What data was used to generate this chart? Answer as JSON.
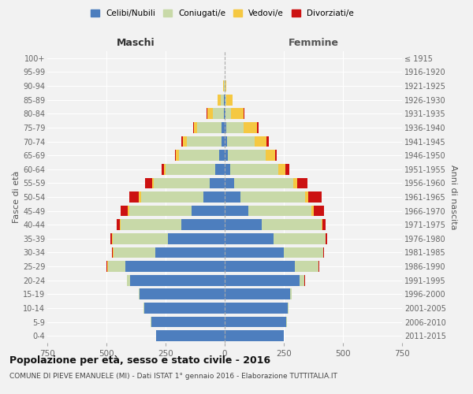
{
  "age_groups": [
    "0-4",
    "5-9",
    "10-14",
    "15-19",
    "20-24",
    "25-29",
    "30-34",
    "35-39",
    "40-44",
    "45-49",
    "50-54",
    "55-59",
    "60-64",
    "65-69",
    "70-74",
    "75-79",
    "80-84",
    "85-89",
    "90-94",
    "95-99",
    "100+"
  ],
  "birth_years": [
    "2011-2015",
    "2006-2010",
    "2001-2005",
    "1996-2000",
    "1991-1995",
    "1986-1990",
    "1981-1985",
    "1976-1980",
    "1971-1975",
    "1966-1970",
    "1961-1965",
    "1956-1960",
    "1951-1955",
    "1946-1950",
    "1941-1945",
    "1936-1940",
    "1931-1935",
    "1926-1930",
    "1921-1925",
    "1916-1920",
    "≤ 1915"
  ],
  "colors": {
    "celibi": "#4D7EBE",
    "coniugati": "#C8D9A8",
    "vedovi": "#F5C842",
    "divorziati": "#CC1111"
  },
  "male": {
    "celibi": [
      290,
      310,
      340,
      360,
      400,
      420,
      295,
      240,
      185,
      140,
      90,
      65,
      40,
      25,
      15,
      12,
      5,
      2,
      1,
      0,
      0
    ],
    "coniugati": [
      0,
      2,
      2,
      3,
      12,
      75,
      175,
      235,
      255,
      265,
      265,
      235,
      210,
      170,
      145,
      105,
      45,
      15,
      3,
      0,
      0
    ],
    "vedovi": [
      0,
      0,
      0,
      0,
      2,
      2,
      2,
      2,
      4,
      5,
      8,
      8,
      8,
      12,
      18,
      12,
      25,
      12,
      2,
      0,
      0
    ],
    "divorziati": [
      0,
      0,
      0,
      0,
      0,
      2,
      4,
      6,
      12,
      30,
      40,
      28,
      10,
      4,
      4,
      4,
      2,
      0,
      0,
      0,
      0
    ]
  },
  "female": {
    "nubili": [
      250,
      260,
      268,
      278,
      318,
      295,
      250,
      205,
      155,
      100,
      65,
      40,
      22,
      14,
      10,
      8,
      4,
      2,
      1,
      0,
      0
    ],
    "coniugate": [
      0,
      2,
      2,
      4,
      18,
      100,
      165,
      220,
      255,
      268,
      275,
      250,
      205,
      158,
      118,
      72,
      22,
      6,
      2,
      0,
      0
    ],
    "vedove": [
      0,
      0,
      0,
      0,
      2,
      2,
      2,
      2,
      4,
      8,
      12,
      18,
      28,
      40,
      50,
      55,
      55,
      25,
      5,
      0,
      0
    ],
    "divorziate": [
      0,
      0,
      0,
      0,
      2,
      2,
      4,
      6,
      12,
      45,
      58,
      42,
      18,
      8,
      8,
      8,
      2,
      0,
      0,
      0,
      0
    ]
  },
  "title": "Popolazione per età, sesso e stato civile - 2016",
  "subtitle": "COMUNE DI PIEVE EMANUELE (MI) - Dati ISTAT 1° gennaio 2016 - Elaborazione TUTTITALIA.IT",
  "xlabel_left": "Maschi",
  "xlabel_right": "Femmine",
  "ylabel_left": "Fasce di età",
  "ylabel_right": "Anni di nascita",
  "legend_labels": [
    "Celibi/Nubili",
    "Coniugati/e",
    "Vedovi/e",
    "Divorziati/e"
  ],
  "xlim": 750,
  "background_color": "#f2f2f2",
  "grid_color": "#ffffff"
}
